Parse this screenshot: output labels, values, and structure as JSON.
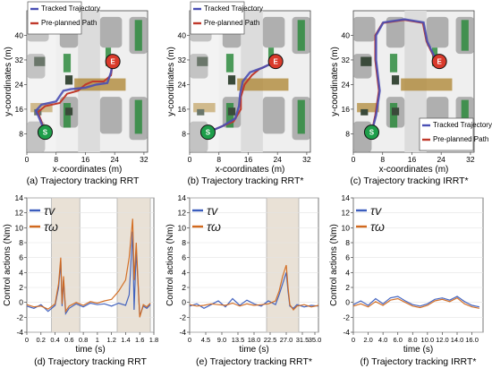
{
  "colors": {
    "tracked": "#4a4fb4",
    "planned": "#c0392b",
    "tau_v": "#3b5dbd",
    "tau_w": "#d2691e",
    "highlight": "#e9e1d6",
    "start": "#1e9e4a",
    "end": "#d93a2b",
    "obstacle_gray": "#9a9a9a",
    "road_brown": "#b08a3a",
    "tree_green": "#2e8b3e"
  },
  "maps": [
    {
      "caption": "(a) Trajectory tracking RRT",
      "xlabel": "x-coordinates (m)",
      "ylabel": "y-coordinates (m)",
      "xticks": [
        "0",
        "8",
        "16",
        "24",
        "32"
      ],
      "yticks": [
        "8",
        "16",
        "24",
        "32",
        "40"
      ],
      "legend": [
        "Tracked Trajectory",
        "Pre-planned Path"
      ],
      "legend_pos": "top-left",
      "start_label": "S",
      "end_label": "E",
      "start": [
        5,
        8.5
      ],
      "end": [
        23.5,
        31.5
      ],
      "planned": [
        [
          5,
          8.5
        ],
        [
          4,
          12
        ],
        [
          3,
          15
        ],
        [
          5,
          17
        ],
        [
          9,
          18
        ],
        [
          11,
          21
        ],
        [
          14,
          22
        ],
        [
          16,
          24
        ],
        [
          18,
          25
        ],
        [
          21,
          25
        ],
        [
          23,
          27
        ],
        [
          23.5,
          31.5
        ]
      ],
      "tracked": [
        [
          5,
          8.5
        ],
        [
          3.8,
          12
        ],
        [
          2.5,
          15.5
        ],
        [
          4,
          17.5
        ],
        [
          8,
          18.5
        ],
        [
          10,
          22
        ],
        [
          12,
          22.5
        ],
        [
          16,
          23
        ],
        [
          19,
          24
        ],
        [
          22,
          24.5
        ],
        [
          23,
          28
        ],
        [
          23.5,
          31.5
        ]
      ]
    },
    {
      "caption": "(b) Trajectory tracking RRT*",
      "xlabel": "x-coordinates (m)",
      "ylabel": "y-coordinates (m)",
      "xticks": [
        "0",
        "8",
        "16",
        "24",
        "32"
      ],
      "yticks": [
        "8",
        "16",
        "24",
        "32",
        "40"
      ],
      "legend": [
        "Tracked Trajectory",
        "Pre-planned Path"
      ],
      "legend_pos": "top-left",
      "start_label": "S",
      "end_label": "E",
      "start": [
        5,
        8.5
      ],
      "end": [
        23.5,
        31.5
      ],
      "planned": [
        [
          5,
          8.5
        ],
        [
          8,
          10
        ],
        [
          12,
          12
        ],
        [
          14,
          16
        ],
        [
          14,
          20
        ],
        [
          15,
          24
        ],
        [
          17,
          27
        ],
        [
          19,
          29
        ],
        [
          23.5,
          31.5
        ]
      ],
      "tracked": [
        [
          5,
          8.5
        ],
        [
          9,
          10.5
        ],
        [
          12.5,
          13
        ],
        [
          13.5,
          17
        ],
        [
          13.8,
          21
        ],
        [
          14.5,
          25
        ],
        [
          16.5,
          28
        ],
        [
          20,
          29.5
        ],
        [
          23.5,
          31.5
        ]
      ]
    },
    {
      "caption": "(c) Trajectory tracking IRRT*",
      "xlabel": "x-coordinates (m)",
      "ylabel": "y-coordinates (m)",
      "xticks": [
        "0",
        "8",
        "16",
        "24",
        "32"
      ],
      "yticks": [
        "8",
        "16",
        "24",
        "32",
        "40"
      ],
      "legend": [
        "Tracked Trajectory",
        "Pre-planned Path"
      ],
      "legend_pos": "bottom-right",
      "start_label": "S",
      "end_label": "E",
      "start": [
        5,
        8.5
      ],
      "end": [
        23.5,
        31.5
      ],
      "planned": [
        [
          5,
          8.5
        ],
        [
          6,
          14
        ],
        [
          7,
          22
        ],
        [
          6,
          32
        ],
        [
          6,
          40
        ],
        [
          8,
          44
        ],
        [
          14,
          45
        ],
        [
          19,
          44
        ],
        [
          20,
          38
        ],
        [
          22,
          33
        ],
        [
          23.5,
          31.5
        ]
      ],
      "tracked": [
        [
          5,
          8.5
        ],
        [
          6.2,
          14
        ],
        [
          7.2,
          22
        ],
        [
          6.2,
          32
        ],
        [
          6.2,
          40
        ],
        [
          8.2,
          44.2
        ],
        [
          14,
          45.2
        ],
        [
          19.2,
          44.2
        ],
        [
          20.2,
          38
        ],
        [
          22.2,
          33
        ],
        [
          23.5,
          31.5
        ]
      ]
    }
  ],
  "chart_data": [
    {
      "type": "line",
      "caption": "(d) Trajectory tracking RRT",
      "xlabel": "time (s)",
      "ylabel": "Control actions (Nm)",
      "xlim": [
        0,
        1.8
      ],
      "ylim": [
        -4,
        14
      ],
      "xticks": [
        "0",
        "0.2",
        "0.4",
        "0.6",
        "0.8",
        "1",
        "1.2",
        "1.4",
        "1.6",
        "1.8"
      ],
      "yticks": [
        "-4",
        "-2",
        "0",
        "2",
        "4",
        "6",
        "8",
        "10",
        "12",
        "14"
      ],
      "legend": [
        "τv",
        "τω"
      ],
      "legend_pos": "top-left",
      "highlight": [
        [
          0.35,
          0.75
        ],
        [
          1.28,
          1.75
        ]
      ],
      "series": [
        {
          "name": "τv",
          "x": [
            0,
            0.1,
            0.2,
            0.3,
            0.4,
            0.45,
            0.48,
            0.5,
            0.52,
            0.55,
            0.6,
            0.7,
            0.8,
            0.9,
            1.0,
            1.1,
            1.2,
            1.3,
            1.4,
            1.45,
            1.5,
            1.52,
            1.55,
            1.6,
            1.65,
            1.7,
            1.75
          ],
          "y": [
            -0.5,
            -0.8,
            -0.3,
            -1.2,
            -0.4,
            2.0,
            5.5,
            -0.5,
            3.0,
            -1.5,
            -0.8,
            -0.2,
            -0.6,
            -0.1,
            -0.3,
            -0.2,
            -0.5,
            -0.1,
            -0.4,
            1.0,
            9.5,
            -1.0,
            7.0,
            -1.8,
            -0.5,
            -0.8,
            -0.3
          ]
        },
        {
          "name": "τω",
          "x": [
            0,
            0.1,
            0.2,
            0.3,
            0.4,
            0.45,
            0.48,
            0.5,
            0.52,
            0.55,
            0.6,
            0.7,
            0.8,
            0.9,
            1.0,
            1.1,
            1.2,
            1.3,
            1.4,
            1.45,
            1.5,
            1.52,
            1.55,
            1.6,
            1.65,
            1.7,
            1.75
          ],
          "y": [
            -0.3,
            -0.6,
            -0.5,
            -0.9,
            -0.2,
            2.5,
            6.0,
            -0.2,
            3.5,
            -1.2,
            -0.5,
            0.0,
            -0.4,
            0.1,
            -0.1,
            0.2,
            0.4,
            1.5,
            3.0,
            6.0,
            11.2,
            3.0,
            8.0,
            -2.0,
            -0.3,
            -0.6,
            -0.1
          ]
        }
      ]
    },
    {
      "type": "line",
      "caption": "(e) Trajectory tracking RRT*",
      "xlabel": "time (s)",
      "ylabel": "Control actions (Nm)",
      "xlim": [
        0,
        36
      ],
      "ylim": [
        -4,
        14
      ],
      "xticks": [
        "0",
        "4.5",
        "9.0",
        "13.5",
        "18.0",
        "22.5",
        "27.0",
        "31.5",
        "35.0"
      ],
      "yticks": [
        "-4",
        "-2",
        "0",
        "2",
        "4",
        "6",
        "8",
        "10",
        "12",
        "14"
      ],
      "legend": [
        "τv",
        "τω"
      ],
      "legend_pos": "top-left",
      "highlight": [
        [
          21.5,
          30.5
        ]
      ],
      "series": [
        {
          "name": "τv",
          "x": [
            0,
            2,
            4,
            6,
            8,
            10,
            12,
            14,
            16,
            18,
            20,
            22,
            24,
            25,
            26,
            27,
            27.5,
            28,
            29,
            30,
            32,
            34,
            36
          ],
          "y": [
            -0.5,
            -0.2,
            -0.8,
            -0.3,
            0.2,
            -0.6,
            0.5,
            -0.4,
            0.3,
            -0.2,
            -0.5,
            0.2,
            -0.3,
            1.0,
            2.5,
            4.0,
            1.5,
            -0.5,
            -0.8,
            -0.3,
            -0.6,
            -0.4,
            -0.5
          ]
        },
        {
          "name": "τω",
          "x": [
            0,
            2,
            4,
            6,
            8,
            10,
            12,
            14,
            16,
            18,
            20,
            22,
            24,
            25,
            26,
            27,
            27.5,
            28,
            29,
            30,
            32,
            34,
            36
          ],
          "y": [
            -0.3,
            -0.5,
            -0.4,
            -0.2,
            -0.3,
            -0.4,
            -0.1,
            -0.5,
            -0.2,
            -0.4,
            -0.3,
            -0.2,
            0.2,
            1.5,
            3.5,
            5.0,
            2.0,
            -0.3,
            -1.0,
            -0.5,
            -0.3,
            -0.6,
            -0.4
          ]
        }
      ]
    },
    {
      "type": "line",
      "caption": "(f) Trajectory tracking IRRT*",
      "xlabel": "time (s)",
      "ylabel": "Control actions (Nm)",
      "xlim": [
        0,
        17.5
      ],
      "ylim": [
        -4,
        14
      ],
      "xticks": [
        "0",
        "2.0",
        "4.0",
        "6.0",
        "8.0",
        "10.0",
        "12.0",
        "14.0",
        "16.0"
      ],
      "yticks": [
        "-4",
        "-2",
        "0",
        "2",
        "4",
        "6",
        "8",
        "10",
        "12",
        "14"
      ],
      "legend": [
        "τv",
        "τω"
      ],
      "legend_pos": "top-left",
      "highlight": [],
      "series": [
        {
          "name": "τv",
          "x": [
            0,
            1,
            2,
            3,
            4,
            5,
            6,
            7,
            8,
            9,
            10,
            11,
            12,
            13,
            14,
            15,
            16,
            17
          ],
          "y": [
            -0.3,
            0.2,
            -0.4,
            0.5,
            -0.2,
            0.6,
            0.8,
            0.2,
            -0.3,
            -0.5,
            -0.2,
            0.4,
            0.6,
            0.3,
            0.8,
            0.1,
            -0.4,
            -0.6
          ]
        },
        {
          "name": "τω",
          "x": [
            0,
            1,
            2,
            3,
            4,
            5,
            6,
            7,
            8,
            9,
            10,
            11,
            12,
            13,
            14,
            15,
            16,
            17
          ],
          "y": [
            -0.5,
            -0.2,
            -0.6,
            0.1,
            -0.4,
            0.3,
            0.5,
            0.0,
            -0.5,
            -0.7,
            -0.4,
            0.2,
            0.4,
            0.1,
            0.6,
            -0.2,
            -0.6,
            -0.8
          ]
        }
      ]
    }
  ]
}
